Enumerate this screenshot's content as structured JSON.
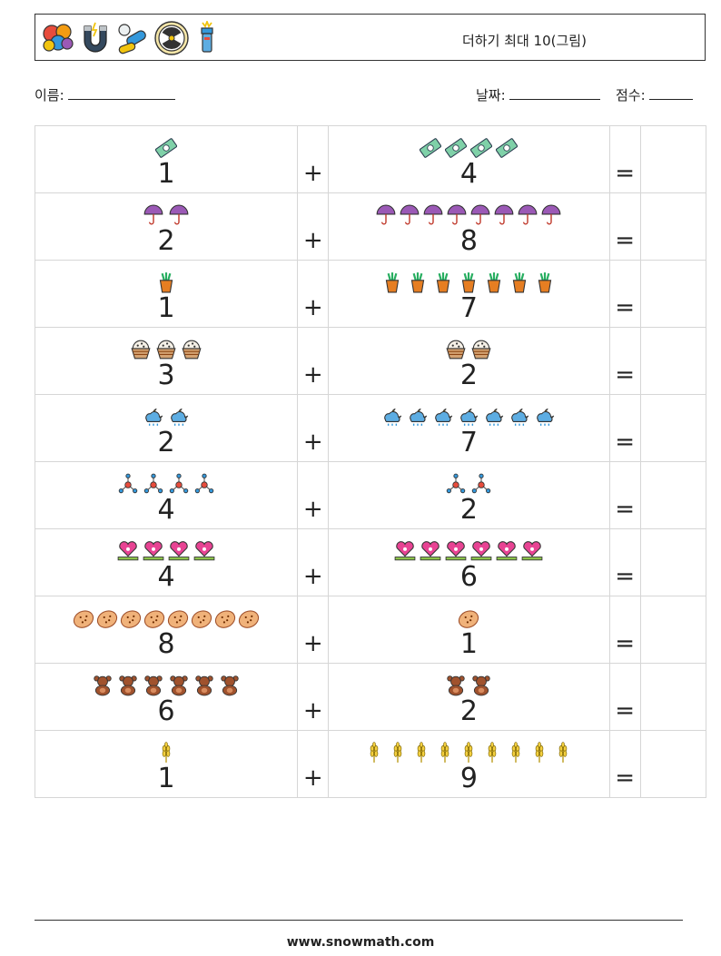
{
  "header": {
    "title": "더하기 최대 10(그림)",
    "icons": [
      "balloons-icon",
      "magnet-icon",
      "pills-icon",
      "radiation-icon",
      "flashlight-icon"
    ]
  },
  "fields": {
    "name_label": "이름:",
    "date_label": "날짜:",
    "score_label": "점수:"
  },
  "operators": {
    "plus": "+",
    "equals": "="
  },
  "rows": [
    {
      "left": {
        "count": 1,
        "label": "1",
        "icon": "banknote-icon"
      },
      "right": {
        "count": 4,
        "label": "4",
        "icon": "banknote-icon"
      }
    },
    {
      "left": {
        "count": 2,
        "label": "2",
        "icon": "umbrella-icon"
      },
      "right": {
        "count": 8,
        "label": "8",
        "icon": "umbrella-icon"
      }
    },
    {
      "left": {
        "count": 1,
        "label": "1",
        "icon": "potted-plant-icon"
      },
      "right": {
        "count": 7,
        "label": "7",
        "icon": "potted-plant-icon"
      }
    },
    {
      "left": {
        "count": 3,
        "label": "3",
        "icon": "basket-icon"
      },
      "right": {
        "count": 2,
        "label": "2",
        "icon": "basket-icon"
      }
    },
    {
      "left": {
        "count": 2,
        "label": "2",
        "icon": "rain-cloud-moon-icon"
      },
      "right": {
        "count": 7,
        "label": "7",
        "icon": "rain-cloud-moon-icon"
      }
    },
    {
      "left": {
        "count": 4,
        "label": "4",
        "icon": "molecule-icon"
      },
      "right": {
        "count": 2,
        "label": "2",
        "icon": "molecule-icon"
      }
    },
    {
      "left": {
        "count": 4,
        "label": "4",
        "icon": "heart-flower-icon"
      },
      "right": {
        "count": 6,
        "label": "6",
        "icon": "heart-flower-icon"
      }
    },
    {
      "left": {
        "count": 8,
        "label": "8",
        "icon": "cookie-icon"
      },
      "right": {
        "count": 1,
        "label": "1",
        "icon": "cookie-icon"
      }
    },
    {
      "left": {
        "count": 6,
        "label": "6",
        "icon": "teddy-bear-icon"
      },
      "right": {
        "count": 2,
        "label": "2",
        "icon": "teddy-bear-icon"
      }
    },
    {
      "left": {
        "count": 1,
        "label": "1",
        "icon": "wheat-icon"
      },
      "right": {
        "count": 9,
        "label": "9",
        "icon": "wheat-icon"
      }
    }
  ],
  "footer": {
    "url": "www.snowmath.com"
  }
}
